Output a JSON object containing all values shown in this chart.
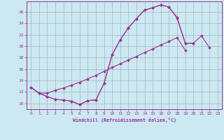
{
  "xlabel": "Windchill (Refroidissement éolien,°C)",
  "bg_color": "#cce8f0",
  "line_color": "#993399",
  "xlim": [
    -0.5,
    23.5
  ],
  "ylim": [
    9.0,
    27.8
  ],
  "xticks": [
    0,
    1,
    2,
    3,
    4,
    5,
    6,
    7,
    8,
    9,
    10,
    11,
    12,
    13,
    14,
    15,
    16,
    17,
    18,
    19,
    20,
    21,
    22,
    23
  ],
  "yticks": [
    10,
    12,
    14,
    16,
    18,
    20,
    22,
    24,
    26
  ],
  "grid_color": "#99aabb",
  "marker": "D",
  "markersize": 2.0,
  "linewidth": 0.8,
  "curve1_x": [
    0,
    1,
    2,
    3,
    4,
    5,
    6,
    7,
    8,
    9,
    10,
    11,
    12,
    13,
    14,
    15,
    16,
    17,
    18,
    19,
    20,
    21,
    22
  ],
  "curve1_y": [
    12.8,
    11.8,
    11.2,
    10.7,
    10.6,
    10.4,
    9.8,
    10.5,
    10.6,
    13.5,
    18.5,
    21.1,
    23.2,
    24.8,
    26.3,
    26.7,
    27.2,
    26.8,
    24.9,
    20.5,
    20.5,
    21.8,
    19.7
  ],
  "curve2_x": [
    0,
    1,
    2,
    3,
    4,
    5,
    6,
    7,
    8,
    9,
    10,
    11,
    12,
    13,
    14,
    15,
    16,
    17,
    18,
    19,
    20,
    21,
    22,
    23
  ],
  "curve2_y": [
    12.8,
    11.8,
    11.2,
    10.7,
    10.6,
    10.4,
    9.8,
    10.5,
    10.6,
    13.5,
    18.5,
    21.1,
    23.2,
    24.8,
    26.3,
    26.7,
    27.2,
    26.8,
    25.0,
    20.5,
    20.5,
    null,
    null,
    null
  ],
  "curve3_x": [
    0,
    1,
    2,
    3,
    4,
    5,
    6,
    7,
    8,
    9,
    10,
    11,
    12,
    13,
    14,
    15,
    16,
    17,
    18,
    19,
    20,
    21,
    22,
    23
  ],
  "curve3_y": [
    12.8,
    11.8,
    11.8,
    12.3,
    12.7,
    13.2,
    13.7,
    14.3,
    14.9,
    15.6,
    16.3,
    16.9,
    17.6,
    18.2,
    18.9,
    19.5,
    20.2,
    20.8,
    21.5,
    19.3,
    null,
    null,
    null,
    null
  ]
}
